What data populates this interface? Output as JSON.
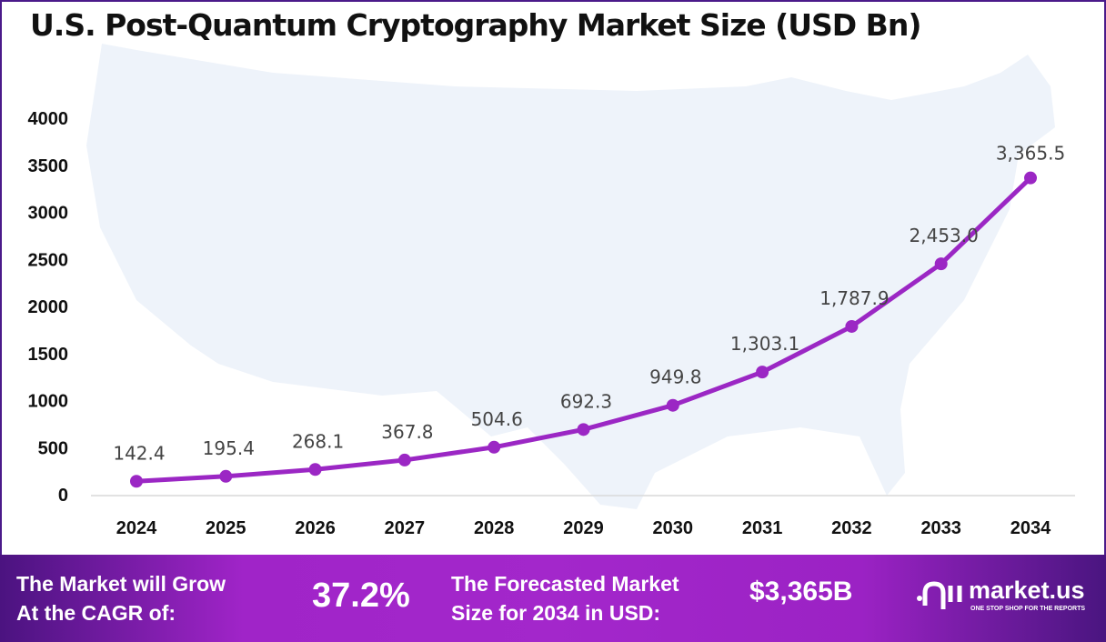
{
  "chart_data": {
    "type": "line",
    "title": "U.S. Post-Quantum Cryptography Market Size (USD Bn)",
    "categories": [
      "2024",
      "2025",
      "2026",
      "2027",
      "2028",
      "2029",
      "2030",
      "2031",
      "2032",
      "2033",
      "2034"
    ],
    "values": [
      142.4,
      195.4,
      268.1,
      367.8,
      504.6,
      692.3,
      949.8,
      1303.1,
      1787.9,
      2453.0,
      3365.5
    ],
    "data_labels": [
      "142.4",
      "195.4",
      "268.1",
      "367.8",
      "504.6",
      "692.3",
      "949.8",
      "1,303.1",
      "1,787.9",
      "2,453.0",
      "3,365.5"
    ],
    "yticks": [
      "0",
      "500",
      "1000",
      "1500",
      "2000",
      "2500",
      "3000",
      "3500",
      "4000"
    ],
    "ylim": [
      0,
      4000
    ],
    "grid": false,
    "legend": "none",
    "line_color": "#9b27c4",
    "background_image": "us-map-silhouette"
  },
  "footer": {
    "cagr_label_1": "The Market will Grow",
    "cagr_label_2": "At the CAGR of:",
    "cagr_value": "37.2%",
    "forecast_label_1": "The Forecasted Market",
    "forecast_label_2": "Size for 2034 in USD:",
    "forecast_value": "$3,365B",
    "brand": "market.us",
    "tagline": "ONE STOP SHOP FOR THE REPORTS"
  }
}
